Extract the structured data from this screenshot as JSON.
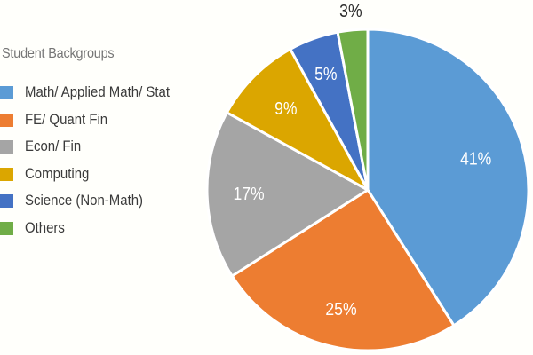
{
  "chart_data": {
    "type": "pie",
    "title": "",
    "legend_title": "Student Backgroups",
    "legend_position": "left",
    "start_angle_deg": 0,
    "direction": "clockwise",
    "categories": [
      "Math/ Applied Math/ Stat",
      "FE/ Quant Fin",
      "Econ/ Fin",
      "Computing",
      "Science (Non-Math)",
      "Others"
    ],
    "values": [
      41,
      25,
      17,
      9,
      5,
      3
    ],
    "labels": [
      "41%",
      "25%",
      "17%",
      "9%",
      "5%",
      "3%"
    ],
    "colors": [
      "#5b9bd5",
      "#ed7d31",
      "#a5a5a5",
      "#dba600",
      "#4472c4",
      "#70ad47"
    ],
    "unit": "%"
  },
  "legend": {
    "title": "Student Backgroups",
    "items": [
      {
        "label": "Math/ Applied Math/ Stat",
        "color": "#5b9bd5"
      },
      {
        "label": "FE/ Quant Fin",
        "color": "#ed7d31"
      },
      {
        "label": "Econ/ Fin",
        "color": "#a5a5a5"
      },
      {
        "label": "Computing",
        "color": "#dba600"
      },
      {
        "label": "Science (Non-Math)",
        "color": "#4472c4"
      },
      {
        "label": "Others",
        "color": "#70ad47"
      }
    ]
  }
}
